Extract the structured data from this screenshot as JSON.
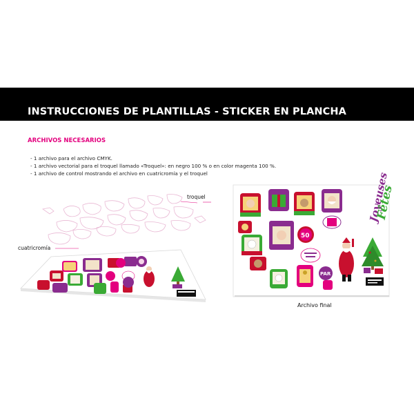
{
  "header": {
    "title": "INSTRUCCIONES DE PLANTILLAS - STICKER  EN PLANCHA"
  },
  "section": {
    "title": "ARCHIVOS NECESARIOS"
  },
  "instructions": [
    "- 1 archivo para el archivo CMYK.",
    "- 1 archivo vectorial para el troquel llamado «Troquel»: en negro 100 % o en color magenta 100 %.",
    "- 1 archivo de control mostrando el archivo en cuatricromía y el troquel"
  ],
  "labels": {
    "troquel": "troquel",
    "cuatricromia": "cuatricromía",
    "archivo_final": "Archivo final"
  },
  "sticker_texts": {
    "joyeuses": "Joyeuses",
    "fetes": "Fêtes",
    "par": "PAR",
    "fifty": "50"
  },
  "colors": {
    "header_bg": "#000000",
    "accent_magenta": "#e3007e",
    "purple": "#8a2c8f",
    "red": "#c8102e",
    "green": "#3aaa35",
    "gold": "#c9a227"
  }
}
